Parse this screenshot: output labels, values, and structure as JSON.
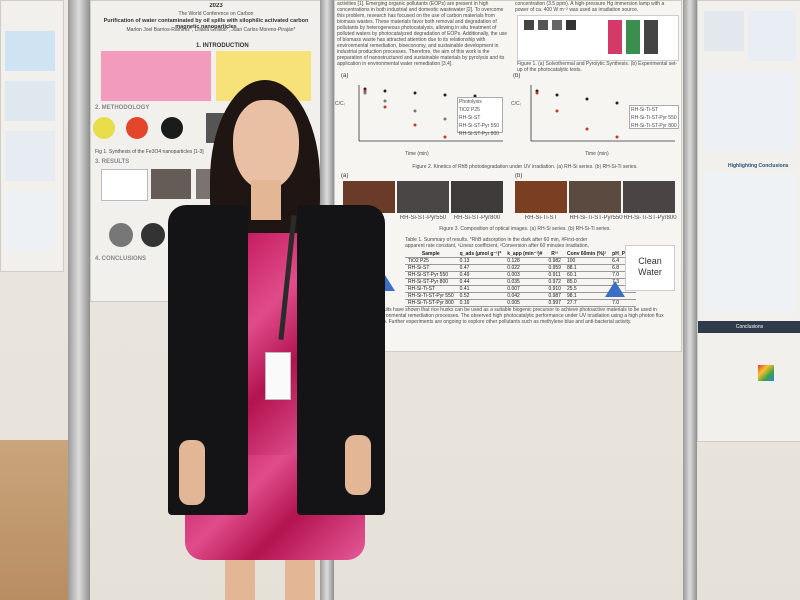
{
  "poster_left": {
    "conference": "2023",
    "event_name": "The World Conference on Carbon",
    "title": "Purification of water contaminated by oil spills with silophilic activated carbon magnetic nanoparticles",
    "authors": "Marlon Joel Barrios-Ramirez*, Liliana Giraldo*, Juan Carlos Moreno-Piraján*",
    "section_intro": "1. INTRODUCTION",
    "section_method": "2. METHODOLOGY",
    "fig1_caption": "Fig 1. Synthesis of the Fe3O4 nanoparticles [1-3]",
    "section_results": "3. RESULTS",
    "section_conclusions": "4. CONCLUSIONS"
  },
  "poster_center": {
    "intro_text": "activities [1]. Emerging organic pollutants (EOPs) are present in high concentrations in both industrial and domestic wastewater [2]. To overcome this problem, research has focused on the use of carbon materials from biomass wastes. These materials favor both removal and degradation of pollutants by heterogeneous photocatalysis, allowing in situ treatment of polluted waters by photocatalyzed degradation of EOPs. Additionally, the use of biomass waste has attracted attention due to its relationship with environmental remediation, bioeconomy, and sustainable development in industrial production processes. Therefore, the aim of this work is the preparation of nanostructured and sustainable materials by pyrolysis and its application in environmental water remediation [3,4].",
    "top_right_text": "concentration (3.5 ppm). A high-pressure Hg immersion lamp with a power of ca. 400 W m⁻² was used as irradiation source.",
    "fig1_caption": "Figure 1. (a) Solvothermal and Pyrolytic Synthesis. (b) Experimental set-up of the photocatalytic tests.",
    "plot_a_label": "(a)",
    "plot_b_label": "(b)",
    "x_axis_label": "Time (min)",
    "y_axis_label": "C/C₀",
    "legend_a": [
      "Photolysis",
      "TiO2 P25",
      "RH-Si-ST",
      "RH-Si-ST-Pyr 550",
      "RH-Si-ST-Pyr 800"
    ],
    "legend_b": [
      "RH-Si-Ti-ST",
      "RH-Si-Ti-ST-Pyr 550",
      "RH-Si-Ti-ST-Pyr 800"
    ],
    "fig2_caption": "Figure 2. Kinetics of RhB photodegradation under UV irradiation. (a) RH-Si series. (b) RH-Si-Ti series.",
    "img_labels": [
      "RH-Si-ST",
      "RH-Si-ST-Pyr550",
      "RH-Si-ST-Pyr800",
      "RH-Si-Ti-ST",
      "RH-Si-Ti-ST-Pyr550",
      "RH-Si-Ti-ST-Pyr800"
    ],
    "img_label_a": "(a)",
    "img_label_b": "(b)",
    "fig3_caption": "Figure 3. Composition of optical images. (a) RH-Si series. (b) RH-Si-Ti series.",
    "table_caption": "Table 1. Summary of results. *RhB adsorption in the dark after 60 min, #First-order apparent rate constant, ¹Linear coefficient, ²Conversion after 60 minutes irradiation, ³Surface pH.",
    "table_headers": [
      "Sample",
      "q_ads (µmol g⁻¹)*",
      "k_app (min⁻¹)#",
      "R²¹",
      "Conv 60min (%)²",
      "pH_PZC³"
    ],
    "table_rows": [
      [
        "TiO2 P25",
        "0.13",
        "0.128",
        "0.982",
        "100",
        "6.4"
      ],
      [
        "RH-Si-ST",
        "0.47",
        "0.022",
        "0.959",
        "88.1",
        "6.8"
      ],
      [
        "RH-Si-ST-Pyr 550",
        "0.49",
        "0.003",
        "0.911",
        "60.1",
        "7.0"
      ],
      [
        "RH-Si-ST-Pyr 800",
        "0.44",
        "0.035",
        "0.972",
        "85.0",
        "7.3"
      ],
      [
        "RH-Si-Ti-ST",
        "0.41",
        "0.007",
        "0.910",
        "25.5",
        "6.0"
      ],
      [
        "RH-Si-Ti-ST-Pyr 550",
        "0.52",
        "0.042",
        "0.987",
        "98.1",
        "6.3"
      ],
      [
        "RH-Si-Ti-ST-Pyr 800",
        "0.16",
        "0.005",
        "0.997",
        "27.7",
        "7.0"
      ]
    ],
    "clean_water": "Clean Water",
    "conclusion_text": "Results have shown that rice husks can be used as a suitable biogenic precursor to achieve photoactive materials to be used in environmental remediation processes. The observed high photocatalytic performance under UV irradiation using a high photon flux lamp. Further experiments are ongoing to explore other pollutants such as methylene blue and anti-bacterial activity."
  },
  "poster_right": {
    "header": "Highlighting Conclusions",
    "footer_label": "Conclusions"
  },
  "person": {
    "description_colors": {
      "jacket": "#141416",
      "dress": "#d0306e",
      "hair": "#1f1613"
    }
  }
}
